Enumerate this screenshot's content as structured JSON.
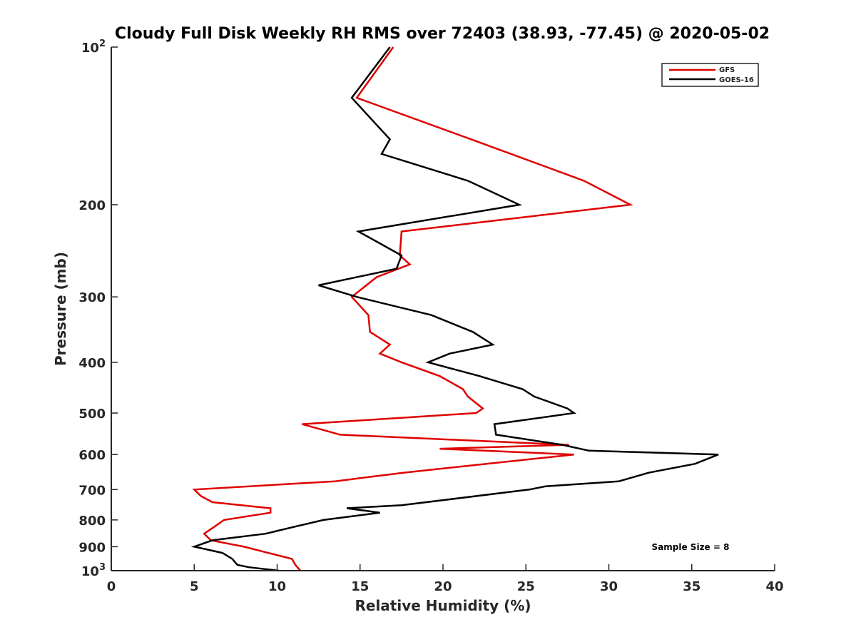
{
  "chart_data": {
    "type": "line",
    "title": "Cloudy Full Disk Weekly RH RMS over 72403 (38.93, -77.45) @ 2020-05-02",
    "xlabel": "Relative Humidity (%)",
    "ylabel": "Pressure (mb)",
    "xlim": [
      0,
      40
    ],
    "ylim": [
      100,
      1000
    ],
    "y_scale": "log",
    "y_reversed": true,
    "grid": false,
    "x_ticks": [
      {
        "value": 0,
        "label": "0"
      },
      {
        "value": 5,
        "label": "5"
      },
      {
        "value": 10,
        "label": "10"
      },
      {
        "value": 15,
        "label": "15"
      },
      {
        "value": 20,
        "label": "20"
      },
      {
        "value": 25,
        "label": "25"
      },
      {
        "value": 30,
        "label": "30"
      },
      {
        "value": 35,
        "label": "35"
      },
      {
        "value": 40,
        "label": "40"
      }
    ],
    "y_ticks": [
      {
        "value": 100,
        "base": "10",
        "exp": "2"
      },
      {
        "value": 200,
        "label": "200"
      },
      {
        "value": 300,
        "label": "300"
      },
      {
        "value": 400,
        "label": "400"
      },
      {
        "value": 500,
        "label": "500"
      },
      {
        "value": 600,
        "label": "600"
      },
      {
        "value": 700,
        "label": "700"
      },
      {
        "value": 800,
        "label": "800"
      },
      {
        "value": 900,
        "label": "900"
      },
      {
        "value": 1000,
        "base": "10",
        "exp": "3"
      }
    ],
    "legend": {
      "placement": "top-right"
    },
    "series": [
      {
        "name": "GFS",
        "color": "#e00000",
        "points": [
          {
            "x": 17.0,
            "y": 100
          },
          {
            "x": 14.8,
            "y": 125
          },
          {
            "x": 21.7,
            "y": 150
          },
          {
            "x": 28.5,
            "y": 180
          },
          {
            "x": 31.3,
            "y": 200
          },
          {
            "x": 17.5,
            "y": 225
          },
          {
            "x": 17.4,
            "y": 250
          },
          {
            "x": 18.0,
            "y": 260
          },
          {
            "x": 16.0,
            "y": 275
          },
          {
            "x": 14.5,
            "y": 300
          },
          {
            "x": 15.5,
            "y": 325
          },
          {
            "x": 15.6,
            "y": 350
          },
          {
            "x": 16.8,
            "y": 370
          },
          {
            "x": 16.2,
            "y": 385
          },
          {
            "x": 17.5,
            "y": 400
          },
          {
            "x": 19.8,
            "y": 425
          },
          {
            "x": 21.2,
            "y": 450
          },
          {
            "x": 21.5,
            "y": 465
          },
          {
            "x": 22.4,
            "y": 490
          },
          {
            "x": 22.0,
            "y": 500
          },
          {
            "x": 11.5,
            "y": 525
          },
          {
            "x": 13.8,
            "y": 550
          },
          {
            "x": 27.6,
            "y": 575
          },
          {
            "x": 19.8,
            "y": 585
          },
          {
            "x": 27.9,
            "y": 600
          },
          {
            "x": 17.6,
            "y": 650
          },
          {
            "x": 13.5,
            "y": 675
          },
          {
            "x": 5.0,
            "y": 700
          },
          {
            "x": 5.4,
            "y": 720
          },
          {
            "x": 6.1,
            "y": 740
          },
          {
            "x": 9.6,
            "y": 760
          },
          {
            "x": 9.6,
            "y": 775
          },
          {
            "x": 6.8,
            "y": 800
          },
          {
            "x": 6.2,
            "y": 825
          },
          {
            "x": 5.6,
            "y": 850
          },
          {
            "x": 6.0,
            "y": 875
          },
          {
            "x": 8.0,
            "y": 900
          },
          {
            "x": 10.9,
            "y": 950
          },
          {
            "x": 11.1,
            "y": 975
          },
          {
            "x": 11.4,
            "y": 1000
          }
        ]
      },
      {
        "name": "GOES-16",
        "color": "#000000",
        "points": [
          {
            "x": 16.8,
            "y": 100
          },
          {
            "x": 14.5,
            "y": 125
          },
          {
            "x": 16.8,
            "y": 150
          },
          {
            "x": 16.3,
            "y": 160
          },
          {
            "x": 21.5,
            "y": 180
          },
          {
            "x": 24.6,
            "y": 200
          },
          {
            "x": 14.9,
            "y": 225
          },
          {
            "x": 17.5,
            "y": 250
          },
          {
            "x": 17.2,
            "y": 265
          },
          {
            "x": 12.5,
            "y": 285
          },
          {
            "x": 14.8,
            "y": 300
          },
          {
            "x": 19.3,
            "y": 325
          },
          {
            "x": 21.8,
            "y": 350
          },
          {
            "x": 23.0,
            "y": 370
          },
          {
            "x": 20.4,
            "y": 385
          },
          {
            "x": 19.1,
            "y": 400
          },
          {
            "x": 22.2,
            "y": 425
          },
          {
            "x": 24.8,
            "y": 450
          },
          {
            "x": 25.5,
            "y": 465
          },
          {
            "x": 27.5,
            "y": 490
          },
          {
            "x": 27.9,
            "y": 500
          },
          {
            "x": 23.1,
            "y": 525
          },
          {
            "x": 23.2,
            "y": 550
          },
          {
            "x": 27.2,
            "y": 575
          },
          {
            "x": 28.8,
            "y": 590
          },
          {
            "x": 36.6,
            "y": 600
          },
          {
            "x": 35.2,
            "y": 625
          },
          {
            "x": 32.4,
            "y": 650
          },
          {
            "x": 30.6,
            "y": 675
          },
          {
            "x": 26.2,
            "y": 690
          },
          {
            "x": 25.2,
            "y": 700
          },
          {
            "x": 17.5,
            "y": 750
          },
          {
            "x": 14.2,
            "y": 760
          },
          {
            "x": 16.2,
            "y": 775
          },
          {
            "x": 12.8,
            "y": 800
          },
          {
            "x": 11.0,
            "y": 825
          },
          {
            "x": 9.3,
            "y": 850
          },
          {
            "x": 6.1,
            "y": 875
          },
          {
            "x": 5.0,
            "y": 900
          },
          {
            "x": 6.7,
            "y": 925
          },
          {
            "x": 7.3,
            "y": 950
          },
          {
            "x": 7.6,
            "y": 975
          },
          {
            "x": 8.3,
            "y": 985
          },
          {
            "x": 10.1,
            "y": 1000
          }
        ]
      }
    ],
    "annotations": [
      {
        "text": "Sample Size = 8",
        "position": "bottom-right"
      }
    ]
  }
}
